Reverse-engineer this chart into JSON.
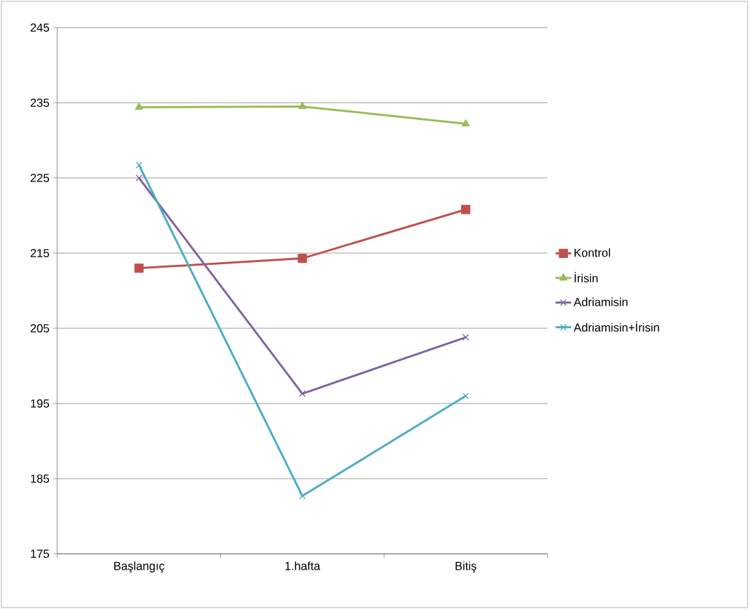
{
  "chart_data": {
    "type": "line",
    "categories": [
      "Başlangıç",
      "1.hafta",
      "Bitiş"
    ],
    "series": [
      {
        "name": "Kontrol",
        "color": "#c0504d",
        "marker": "square",
        "values": [
          213.0,
          214.3,
          220.8
        ]
      },
      {
        "name": "İrisin",
        "color": "#9bbb59",
        "marker": "triangle",
        "values": [
          234.4,
          234.5,
          232.2
        ]
      },
      {
        "name": "Adriamisin",
        "color": "#8064a2",
        "marker": "cross",
        "values": [
          225.0,
          196.3,
          203.8
        ]
      },
      {
        "name": "Adriamisin+İrisin",
        "color": "#4bacc6",
        "marker": "cross",
        "values": [
          226.7,
          182.7,
          196.0
        ]
      }
    ],
    "ylim": [
      175,
      245
    ],
    "yticks": [
      175,
      185,
      195,
      205,
      215,
      225,
      235,
      245
    ],
    "grid": "y",
    "legend": "right",
    "line_style": "solid"
  }
}
